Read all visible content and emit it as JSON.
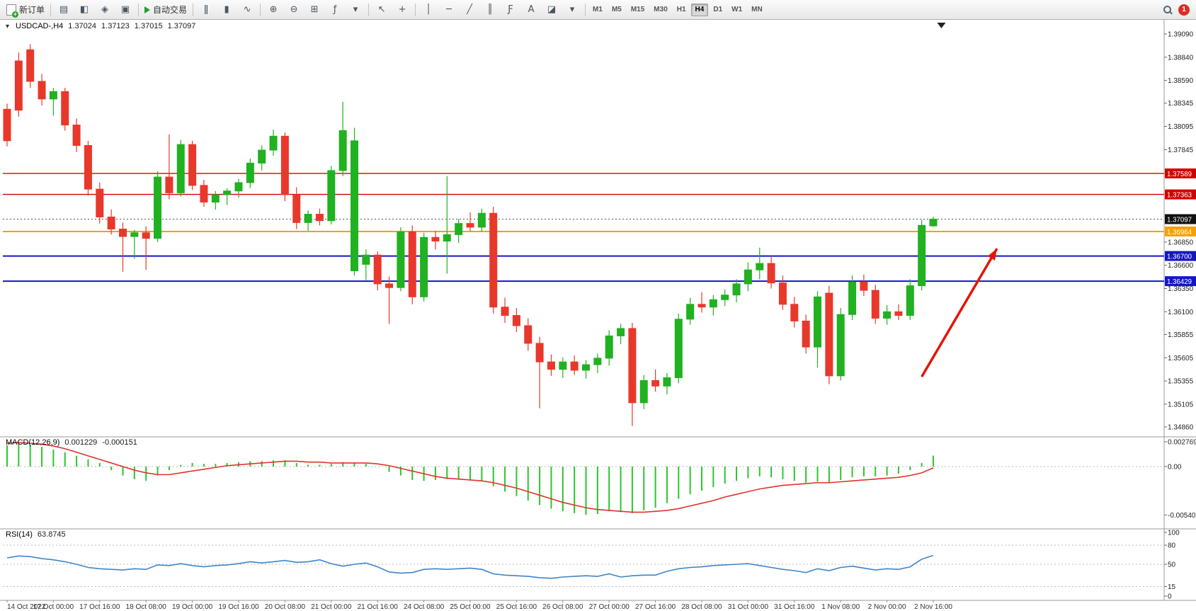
{
  "toolbar": {
    "new_order_label": "新订单",
    "autotrade_label": "自动交易",
    "badge_count": "1",
    "icon_groups": [
      {
        "items": [
          {
            "name": "chart-profiles",
            "glyph": "▤"
          },
          {
            "name": "market-watch",
            "glyph": "◧"
          },
          {
            "name": "navigator",
            "glyph": "◈"
          },
          {
            "name": "terminal",
            "glyph": "▣"
          }
        ]
      },
      {
        "items": [
          {
            "name": "bar-chart-mode",
            "glyph": "ǁ"
          },
          {
            "name": "candlestick-mode",
            "glyph": "▮"
          },
          {
            "name": "line-chart-mode",
            "glyph": "∿"
          }
        ]
      },
      {
        "items": [
          {
            "name": "zoom-in",
            "glyph": "⊕"
          },
          {
            "name": "zoom-out",
            "glyph": "⊖"
          },
          {
            "name": "tile-windows",
            "glyph": "⊞"
          },
          {
            "name": "indicators",
            "glyph": "ƒ"
          },
          {
            "name": "indicators-menu",
            "glyph": "▾"
          }
        ]
      },
      {
        "items": [
          {
            "name": "cursor",
            "glyph": "↖"
          },
          {
            "name": "crosshair",
            "glyph": "+"
          }
        ]
      },
      {
        "items": [
          {
            "name": "vertical-line",
            "glyph": "│"
          },
          {
            "name": "horizontal-line",
            "glyph": "─"
          },
          {
            "name": "trendline",
            "glyph": "╱"
          },
          {
            "name": "equidistant-channel",
            "glyph": "║"
          },
          {
            "name": "fibonacci",
            "glyph": "Ƒ"
          },
          {
            "name": "text-tool",
            "glyph": "A"
          },
          {
            "name": "shapes-tool",
            "glyph": "◪"
          },
          {
            "name": "objects-menu",
            "glyph": "▾"
          }
        ]
      }
    ],
    "timeframes": [
      "M1",
      "M5",
      "M15",
      "M30",
      "H1",
      "H4",
      "D1",
      "W1",
      "MN"
    ],
    "active_timeframe": "H4"
  },
  "chart_data": [
    {
      "type": "candlestick",
      "symbol_title": "USDCAD-,H4",
      "ohlc": {
        "open": "1.37024",
        "high": "1.37123",
        "low": "1.37015",
        "close": "1.37097"
      },
      "bull_color": "#21B121",
      "bear_color": "#E8382C",
      "axis_top_price": 1.3909,
      "axis_bottom_price": 1.3486,
      "y_axis_ticks": [
        "1.39090",
        "1.38840",
        "1.38590",
        "1.38345",
        "1.38095",
        "1.37845",
        "1.36850",
        "1.36600",
        "1.36350",
        "1.36100",
        "1.35855",
        "1.35605",
        "1.35355",
        "1.35105",
        "1.34860"
      ],
      "x_labels": [
        "14 Oct 2022",
        "17 Oct 00:00",
        "17 Oct 16:00",
        "18 Oct 08:00",
        "19 Oct 00:00",
        "19 Oct 16:00",
        "20 Oct 08:00",
        "21 Oct 00:00",
        "21 Oct 16:00",
        "24 Oct 08:00",
        "25 Oct 00:00",
        "25 Oct 16:00",
        "26 Oct 08:00",
        "27 Oct 00:00",
        "27 Oct 16:00",
        "28 Oct 08:00",
        "31 Oct 00:00",
        "31 Oct 16:00",
        "1 Nov 08:00",
        "2 Nov 00:00",
        "2 Nov 16:00"
      ],
      "x_label_every": 4,
      "candles": [
        [
          1.3828,
          1.3834,
          1.3788,
          1.3794
        ],
        [
          1.388,
          1.3889,
          1.382,
          1.3827
        ],
        [
          1.3892,
          1.3898,
          1.3851,
          1.3858
        ],
        [
          1.3858,
          1.3866,
          1.3832,
          1.3839
        ],
        [
          1.3839,
          1.3851,
          1.3821,
          1.3847
        ],
        [
          1.3847,
          1.3851,
          1.3805,
          1.3811
        ],
        [
          1.3811,
          1.3818,
          1.3782,
          1.3789
        ],
        [
          1.3789,
          1.3794,
          1.3735,
          1.3742
        ],
        [
          1.3742,
          1.3749,
          1.3705,
          1.3712
        ],
        [
          1.3712,
          1.372,
          1.3693,
          1.3699
        ],
        [
          1.3699,
          1.3706,
          1.3653,
          1.3691
        ],
        [
          1.3691,
          1.3698,
          1.3667,
          1.3695
        ],
        [
          1.3695,
          1.3702,
          1.3655,
          1.3689
        ],
        [
          1.3689,
          1.3761,
          1.3685,
          1.3755
        ],
        [
          1.3755,
          1.3801,
          1.3731,
          1.3738
        ],
        [
          1.3738,
          1.3795,
          1.3734,
          1.379
        ],
        [
          1.379,
          1.3794,
          1.3741,
          1.3746
        ],
        [
          1.3746,
          1.3752,
          1.3723,
          1.3728
        ],
        [
          1.3728,
          1.374,
          1.372,
          1.3736
        ],
        [
          1.3736,
          1.3743,
          1.3725,
          1.374
        ],
        [
          1.374,
          1.3753,
          1.3733,
          1.3749
        ],
        [
          1.3749,
          1.3775,
          1.3743,
          1.377
        ],
        [
          1.377,
          1.3789,
          1.3762,
          1.3784
        ],
        [
          1.3784,
          1.3806,
          1.3778,
          1.3799
        ],
        [
          1.3799,
          1.3803,
          1.3729,
          1.3736
        ],
        [
          1.3736,
          1.3744,
          1.3699,
          1.3706
        ],
        [
          1.3706,
          1.3719,
          1.3697,
          1.3715
        ],
        [
          1.3715,
          1.3721,
          1.3703,
          1.3708
        ],
        [
          1.3708,
          1.3767,
          1.3704,
          1.3762
        ],
        [
          1.3762,
          1.3836,
          1.3756,
          1.3805
        ],
        [
          1.3654,
          1.3808,
          1.3649,
          1.3794
        ],
        [
          1.3661,
          1.3677,
          1.3644,
          1.3671
        ],
        [
          1.3671,
          1.3675,
          1.3633,
          1.364
        ],
        [
          1.364,
          1.3648,
          1.3597,
          1.3636
        ],
        [
          1.3636,
          1.3701,
          1.3632,
          1.3696
        ],
        [
          1.3696,
          1.3703,
          1.3618,
          1.3626
        ],
        [
          1.3626,
          1.3695,
          1.3621,
          1.369
        ],
        [
          1.369,
          1.3697,
          1.3677,
          1.3686
        ],
        [
          1.3686,
          1.3756,
          1.3651,
          1.3693
        ],
        [
          1.3693,
          1.371,
          1.3684,
          1.3705
        ],
        [
          1.3705,
          1.3717,
          1.3697,
          1.3701
        ],
        [
          1.3701,
          1.3721,
          1.3696,
          1.3716
        ],
        [
          1.3716,
          1.3723,
          1.3608,
          1.3615
        ],
        [
          1.3615,
          1.3625,
          1.3598,
          1.3606
        ],
        [
          1.3606,
          1.3614,
          1.3588,
          1.3595
        ],
        [
          1.3595,
          1.3603,
          1.3568,
          1.3576
        ],
        [
          1.3576,
          1.3583,
          1.3506,
          1.3556
        ],
        [
          1.3556,
          1.3564,
          1.3541,
          1.3548
        ],
        [
          1.3548,
          1.3561,
          1.3539,
          1.3556
        ],
        [
          1.3556,
          1.3563,
          1.3542,
          1.3547
        ],
        [
          1.3547,
          1.3558,
          1.3538,
          1.3553
        ],
        [
          1.3553,
          1.3565,
          1.3544,
          1.356
        ],
        [
          1.356,
          1.359,
          1.3552,
          1.3584
        ],
        [
          1.3584,
          1.3597,
          1.3575,
          1.3592
        ],
        [
          1.3592,
          1.3598,
          1.3487,
          1.3512
        ],
        [
          1.3512,
          1.3542,
          1.3505,
          1.3536
        ],
        [
          1.3536,
          1.3548,
          1.3524,
          1.353
        ],
        [
          1.353,
          1.3544,
          1.3521,
          1.3539
        ],
        [
          1.3539,
          1.3608,
          1.3533,
          1.3602
        ],
        [
          1.3602,
          1.3625,
          1.3596,
          1.3618
        ],
        [
          1.3618,
          1.3631,
          1.3609,
          1.3615
        ],
        [
          1.3615,
          1.3628,
          1.3606,
          1.3623
        ],
        [
          1.3623,
          1.3634,
          1.3616,
          1.3628
        ],
        [
          1.3628,
          1.3645,
          1.362,
          1.364
        ],
        [
          1.364,
          1.3663,
          1.3632,
          1.3655
        ],
        [
          1.3655,
          1.3679,
          1.3645,
          1.3662
        ],
        [
          1.3662,
          1.367,
          1.3635,
          1.3641
        ],
        [
          1.3641,
          1.3649,
          1.3612,
          1.3618
        ],
        [
          1.3618,
          1.3626,
          1.3593,
          1.36
        ],
        [
          1.36,
          1.3607,
          1.3565,
          1.3572
        ],
        [
          1.3572,
          1.3632,
          1.355,
          1.3626
        ],
        [
          1.363,
          1.3638,
          1.3532,
          1.3541
        ],
        [
          1.3541,
          1.3614,
          1.3536,
          1.3607
        ],
        [
          1.3607,
          1.3649,
          1.3601,
          1.3642
        ],
        [
          1.3642,
          1.365,
          1.3627,
          1.3633
        ],
        [
          1.3633,
          1.3639,
          1.3597,
          1.3603
        ],
        [
          1.3603,
          1.3617,
          1.3596,
          1.361
        ],
        [
          1.361,
          1.3618,
          1.3601,
          1.3606
        ],
        [
          1.3606,
          1.3645,
          1.3601,
          1.3638
        ],
        [
          1.3638,
          1.3709,
          1.3633,
          1.3703
        ],
        [
          1.37024,
          1.37123,
          1.37015,
          1.37097
        ]
      ],
      "hlines": [
        {
          "price": 1.37589,
          "label": "1.37589",
          "color": "#D40000",
          "width": 1.4
        },
        {
          "price": 1.37363,
          "label": "1.37363",
          "color": "#D40000",
          "width": 1.4
        },
        {
          "price": 1.36964,
          "label": "1.36964",
          "color": "#F5A000",
          "width": 2
        },
        {
          "price": 1.367,
          "label": "1.36700",
          "color": "#1515C8",
          "width": 2
        },
        {
          "price": 1.36429,
          "label": "1.36429",
          "color": "#1515C8",
          "width": 2
        }
      ],
      "bid_line": {
        "price": 1.37097,
        "label": "1.37097",
        "color": "#111111"
      },
      "arrow": {
        "from_bar": 79,
        "from_price": 1.354,
        "to_bar": 85.5,
        "to_price": 1.3678,
        "color": "#E51400",
        "width": 3.5
      },
      "shift_marker_bar": 80.7
    },
    {
      "type": "bar",
      "name": "MACD(12,26,9)",
      "values": [
        "0.001229",
        "-0.000151"
      ],
      "histogram_color": "#2DC52D",
      "signal_color": "#E0332A",
      "y_ticks": [
        "0.002769",
        "0.00",
        "-0.005408"
      ],
      "histogram": [
        0.0024,
        0.0026,
        0.0024,
        0.0022,
        0.0019,
        0.0016,
        0.0012,
        0.0008,
        0.0004,
        -0.0004,
        -0.001,
        -0.0014,
        -0.0016,
        -0.001,
        -0.0004,
        0.0002,
        0.0004,
        0.0003,
        0.0003,
        0.0004,
        0.0005,
        0.0006,
        0.0006,
        0.0007,
        0.0007,
        0.0004,
        0.0002,
        0.0002,
        0.0003,
        0.0005,
        0.0004,
        0.0003,
        0.0,
        -0.0006,
        -0.001,
        -0.0015,
        -0.0016,
        -0.0015,
        -0.0014,
        -0.0014,
        -0.0015,
        -0.0016,
        -0.0022,
        -0.0028,
        -0.0033,
        -0.0038,
        -0.0043,
        -0.0047,
        -0.005,
        -0.0052,
        -0.0054,
        -0.0053,
        -0.005,
        -0.0051,
        -0.0052,
        -0.0049,
        -0.0046,
        -0.0041,
        -0.0036,
        -0.0031,
        -0.0027,
        -0.0023,
        -0.0019,
        -0.0016,
        -0.0013,
        -0.0011,
        -0.0012,
        -0.0014,
        -0.0016,
        -0.0018,
        -0.0017,
        -0.0018,
        -0.0015,
        -0.0012,
        -0.0011,
        -0.0011,
        -0.001,
        -0.0008,
        -0.0004,
        0.0004,
        0.001229
      ],
      "signal": [
        0.0026,
        0.0027,
        0.0026,
        0.0025,
        0.0023,
        0.002,
        0.0016,
        0.0012,
        0.0008,
        0.0004,
        0.0,
        -0.0004,
        -0.0007,
        -0.0009,
        -0.0009,
        -0.0007,
        -0.0005,
        -0.0003,
        -0.0001,
        0.0001,
        0.0002,
        0.0003,
        0.0004,
        0.0005,
        0.0006,
        0.0006,
        0.0005,
        0.0005,
        0.0004,
        0.0004,
        0.0004,
        0.0004,
        0.0003,
        0.0001,
        -0.0002,
        -0.0005,
        -0.0008,
        -0.0011,
        -0.0013,
        -0.0014,
        -0.0015,
        -0.0016,
        -0.0018,
        -0.0021,
        -0.0024,
        -0.0028,
        -0.0032,
        -0.0036,
        -0.004,
        -0.0043,
        -0.0046,
        -0.0048,
        -0.0049,
        -0.005,
        -0.0051,
        -0.0051,
        -0.005,
        -0.0049,
        -0.0047,
        -0.0044,
        -0.0041,
        -0.0038,
        -0.0034,
        -0.0031,
        -0.0028,
        -0.0025,
        -0.0023,
        -0.0021,
        -0.002,
        -0.0019,
        -0.0018,
        -0.0018,
        -0.0017,
        -0.0016,
        -0.0015,
        -0.0014,
        -0.0013,
        -0.0012,
        -0.001,
        -0.0007,
        -0.000151
      ]
    },
    {
      "type": "line",
      "name": "RSI(14)",
      "value": "63.8745",
      "line_color": "#3E86C8",
      "levels": [
        80,
        50,
        15
      ],
      "y_ticks": [
        "100",
        "80",
        "50",
        "15",
        "0"
      ],
      "values": [
        60,
        63,
        62,
        59,
        57,
        54,
        50,
        45,
        43,
        42,
        41,
        43,
        42,
        49,
        48,
        51,
        48,
        46,
        48,
        49,
        51,
        54,
        52,
        54,
        56,
        53,
        54,
        57,
        51,
        47,
        50,
        52,
        46,
        38,
        36,
        37,
        42,
        43,
        42,
        43,
        44,
        42,
        35,
        33,
        32,
        31,
        29,
        28,
        30,
        31,
        32,
        31,
        35,
        30,
        32,
        33,
        33,
        39,
        43,
        45,
        46,
        48,
        49,
        50,
        51,
        48,
        45,
        42,
        40,
        37,
        43,
        40,
        45,
        47,
        44,
        41,
        43,
        42,
        46,
        58,
        63.8745
      ]
    }
  ]
}
